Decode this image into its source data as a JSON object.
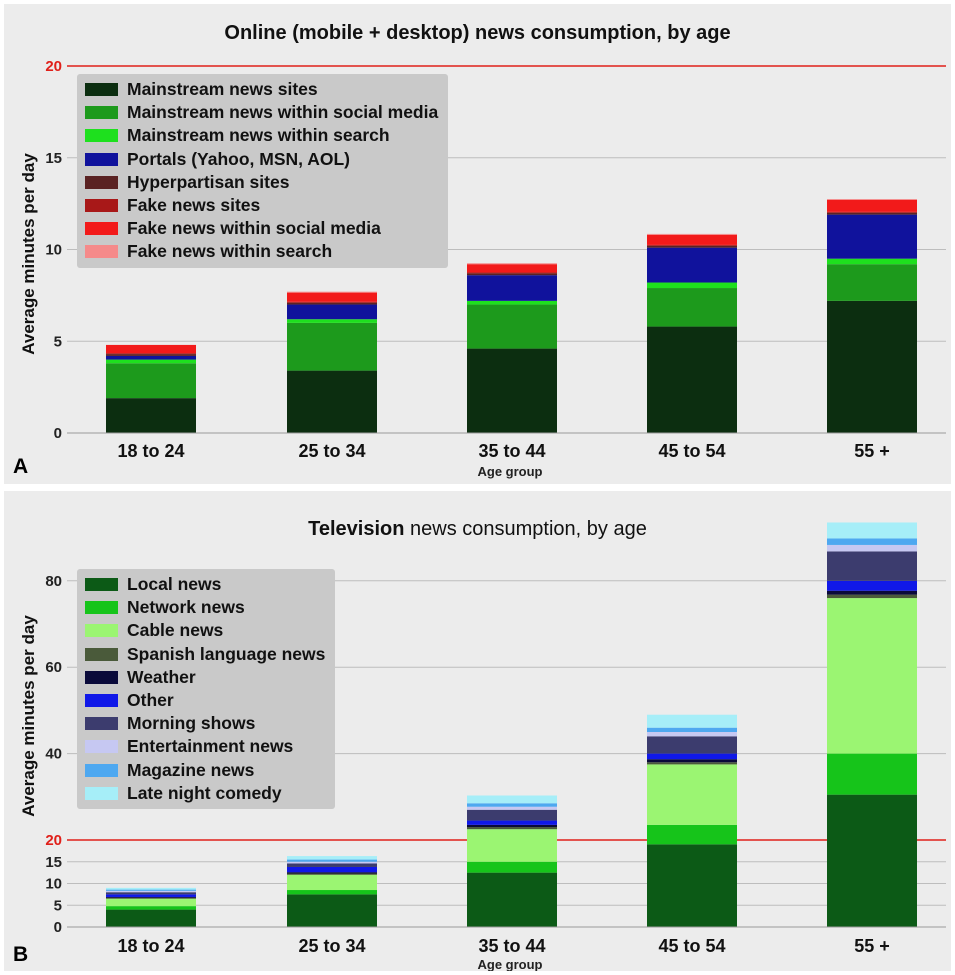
{
  "chart_data": [
    {
      "panel_label": "A",
      "type": "bar",
      "stacked": true,
      "title_bold": "Online (mobile + desktop) news consumption, by age",
      "title_normal": "",
      "xlabel": "Age group",
      "ylabel": "Average minutes per day",
      "categories": [
        "18 to 24",
        "25 to 34",
        "35 to 44",
        "45 to 54",
        "55 +"
      ],
      "ylim": [
        0,
        20
      ],
      "yticks": [
        "0",
        "5",
        "10",
        "15",
        "20"
      ],
      "reference_line": {
        "value": 20,
        "color": "#e0201a"
      },
      "legend_position": "top-left",
      "series": [
        {
          "name": "Mainstream news sites",
          "color": "#0c2e10",
          "values": [
            1.9,
            3.4,
            4.6,
            5.8,
            7.2
          ]
        },
        {
          "name": "Mainstream news within social media",
          "color": "#1d9a1c",
          "values": [
            1.9,
            2.6,
            2.4,
            2.1,
            2.0
          ]
        },
        {
          "name": "Mainstream news within search",
          "color": "#1ee01e",
          "values": [
            0.2,
            0.2,
            0.2,
            0.3,
            0.3
          ]
        },
        {
          "name": "Portals (Yahoo, MSN, AOL)",
          "color": "#10129c",
          "values": [
            0.2,
            0.8,
            1.4,
            1.9,
            2.4
          ]
        },
        {
          "name": "Hyperpartisan sites",
          "color": "#5a2222",
          "values": [
            0.1,
            0.1,
            0.1,
            0.1,
            0.1
          ]
        },
        {
          "name": "Fake news sites",
          "color": "#a81818",
          "values": [
            0.05,
            0.05,
            0.05,
            0.05,
            0.05
          ]
        },
        {
          "name": "Fake news within social media",
          "color": "#f21a1a",
          "values": [
            0.45,
            0.5,
            0.45,
            0.55,
            0.65
          ]
        },
        {
          "name": "Fake news within search",
          "color": "#f58a8a",
          "values": [
            0.0,
            0.05,
            0.05,
            0.05,
            0.05
          ]
        }
      ]
    },
    {
      "panel_label": "B",
      "type": "bar",
      "stacked": true,
      "title_bold": "Television",
      "title_normal": " news consumption, by age",
      "xlabel": "Age group",
      "ylabel": "Average minutes per day",
      "categories": [
        "18 to 24",
        "25 to 34",
        "35 to 44",
        "45 to 54",
        "55 +"
      ],
      "ylim": [
        0,
        95
      ],
      "yticks": [
        "0",
        "5",
        "10",
        "15",
        "20",
        "40",
        "60",
        "80"
      ],
      "reference_line": {
        "value": 20,
        "color": "#e0201a"
      },
      "legend_position": "top-left",
      "series": [
        {
          "name": "Local news",
          "color": "#0c5a16",
          "values": [
            4,
            7.5,
            12.5,
            19,
            30.5
          ]
        },
        {
          "name": "Network news",
          "color": "#16c41a",
          "values": [
            0.8,
            1,
            2.5,
            4.5,
            9.5
          ]
        },
        {
          "name": "Cable news",
          "color": "#9bf572",
          "values": [
            1.7,
            3.5,
            7.5,
            14,
            36
          ]
        },
        {
          "name": "Spanish language news",
          "color": "#4a5a3a",
          "values": [
            0.2,
            0.3,
            0.5,
            0.5,
            0.8
          ]
        },
        {
          "name": "Weather",
          "color": "#0a0a3a",
          "values": [
            0.2,
            0.3,
            0.5,
            0.7,
            0.9
          ]
        },
        {
          "name": "Other",
          "color": "#1018e8",
          "values": [
            0.6,
            1.2,
            1.0,
            1.3,
            2.3
          ]
        },
        {
          "name": "Morning shows",
          "color": "#3c3c6e",
          "values": [
            0.5,
            0.8,
            2.5,
            4.0,
            6.8
          ]
        },
        {
          "name": "Entertainment news",
          "color": "#c6c8f2",
          "values": [
            0.3,
            0.4,
            0.7,
            1.0,
            1.5
          ]
        },
        {
          "name": "Magazine news",
          "color": "#4ea8f0",
          "values": [
            0.3,
            0.5,
            0.8,
            1.0,
            1.5
          ]
        },
        {
          "name": "Late night comedy",
          "color": "#a6eef8",
          "values": [
            0.4,
            0.8,
            1.8,
            3.0,
            3.7
          ]
        }
      ]
    }
  ]
}
